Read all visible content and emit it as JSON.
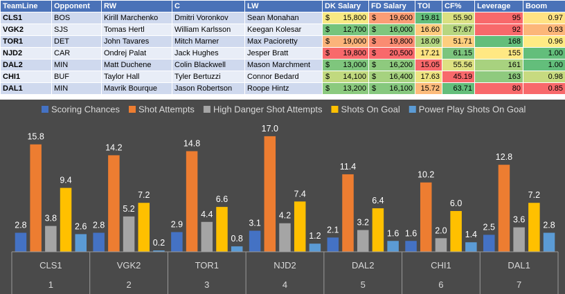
{
  "table": {
    "headers": [
      "TeamLine",
      "Opponent",
      "RW",
      "C",
      "LW",
      "DK Salary",
      "FD Salary",
      "TOI",
      "CF%",
      "Leverage",
      "Boom"
    ],
    "currency": "$",
    "rows": [
      {
        "team": "CLS1",
        "opp": "BOS",
        "rw": "Kirill Marchenko",
        "c": "Dmitri Voronkov",
        "lw": "Sean Monahan",
        "dk": "15,800",
        "fd": "19,600",
        "toi": "19.81",
        "cf": "55.90",
        "lev": "95",
        "boom": "0.97"
      },
      {
        "team": "VGK2",
        "opp": "SJS",
        "rw": "Tomas Hertl",
        "c": "William Karlsson",
        "lw": "Keegan Kolesar",
        "dk": "12,700",
        "fd": "16,000",
        "toi": "16.60",
        "cf": "57.67",
        "lev": "92",
        "boom": "0.93"
      },
      {
        "team": "TOR1",
        "opp": "DET",
        "rw": "John Tavares",
        "c": "Mitch Marner",
        "lw": "Max Pacioretty",
        "dk": "19,000",
        "fd": "19,800",
        "toi": "18.09",
        "cf": "51.71",
        "lev": "168",
        "boom": "0.96"
      },
      {
        "team": "NJD2",
        "opp": "CAR",
        "rw": "Ondrej Palat",
        "c": "Jack Hughes",
        "lw": "Jesper Bratt",
        "dk": "19,800",
        "fd": "20,500",
        "toi": "17.21",
        "cf": "61.15",
        "lev": "155",
        "boom": "1.00"
      },
      {
        "team": "DAL2",
        "opp": "MIN",
        "rw": "Matt Duchene",
        "c": "Colin Blackwell",
        "lw": "Mason Marchment",
        "dk": "13,000",
        "fd": "16,200",
        "toi": "15.05",
        "cf": "55.56",
        "lev": "161",
        "boom": "1.00"
      },
      {
        "team": "CHI1",
        "opp": "BUF",
        "rw": "Taylor Hall",
        "c": "Tyler Bertuzzi",
        "lw": "Connor Bedard",
        "dk": "14,100",
        "fd": "16,400",
        "toi": "17.63",
        "cf": "45.19",
        "lev": "163",
        "boom": "0.98"
      },
      {
        "team": "DAL1",
        "opp": "MIN",
        "rw": "Mavrik Bourque",
        "c": "Jason Robertson",
        "lw": "Roope Hintz",
        "dk": "13,200",
        "fd": "16,100",
        "toi": "15.72",
        "cf": "63.71",
        "lev": "80",
        "boom": "0.85"
      }
    ],
    "cell_colors": {
      "dk": [
        "#f7e983",
        "#76c47c",
        "#fbb37a",
        "#f8696b",
        "#7fc67d",
        "#c1d97f",
        "#8bca7e"
      ],
      "fd": [
        "#fb9d75",
        "#7fc67d",
        "#fa8c72",
        "#f8696b",
        "#8eca7e",
        "#a6d27f",
        "#86c87e"
      ],
      "toi": [
        "#63be7b",
        "#fecb7e",
        "#b3d580",
        "#fde382",
        "#f8696b",
        "#eee482",
        "#fdbb7b"
      ],
      "cf": [
        "#dae081",
        "#b7d680",
        "#fdce7e",
        "#7cc57d",
        "#dee182",
        "#f8696b",
        "#63be7b"
      ],
      "lev": [
        "#f8696b",
        "#f8696b",
        "#63be7b",
        "#ffe883",
        "#a8d27f",
        "#8fca7e",
        "#f8696b"
      ],
      "boom": [
        "#ffe283",
        "#fcb679",
        "#ffeb84",
        "#63be7b",
        "#63be7b",
        "#c7da80",
        "#f8696b"
      ]
    }
  },
  "chart_data": {
    "type": "bar",
    "categories": [
      "CLS1",
      "VGK2",
      "TOR1",
      "NJD2",
      "DAL2",
      "CHI1",
      "DAL1"
    ],
    "category_numbers": [
      "1",
      "2",
      "3",
      "4",
      "5",
      "6",
      "7"
    ],
    "series": [
      {
        "name": "Scoring Chances",
        "color": "#4472c4",
        "values": [
          2.8,
          2.8,
          2.9,
          3.1,
          2.1,
          1.6,
          2.5
        ]
      },
      {
        "name": "Shot Attempts",
        "color": "#ed7d31",
        "values": [
          15.8,
          14.2,
          14.8,
          17.0,
          11.4,
          10.2,
          12.8
        ]
      },
      {
        "name": "High Danger Shot Attempts",
        "color": "#a5a5a5",
        "values": [
          3.8,
          5.2,
          4.4,
          4.2,
          3.2,
          2.0,
          3.6
        ]
      },
      {
        "name": "Shots On Goal",
        "color": "#ffc000",
        "values": [
          9.4,
          7.2,
          6.6,
          7.4,
          6.4,
          6.0,
          7.2
        ]
      },
      {
        "name": "Power Play Shots On Goal",
        "color": "#5b9bd5",
        "values": [
          2.6,
          0.2,
          0.8,
          1.2,
          1.6,
          1.4,
          2.8
        ]
      }
    ],
    "ylim": [
      0,
      17.5
    ],
    "grid": false,
    "legend": "top",
    "background": "#4a4a4a"
  }
}
